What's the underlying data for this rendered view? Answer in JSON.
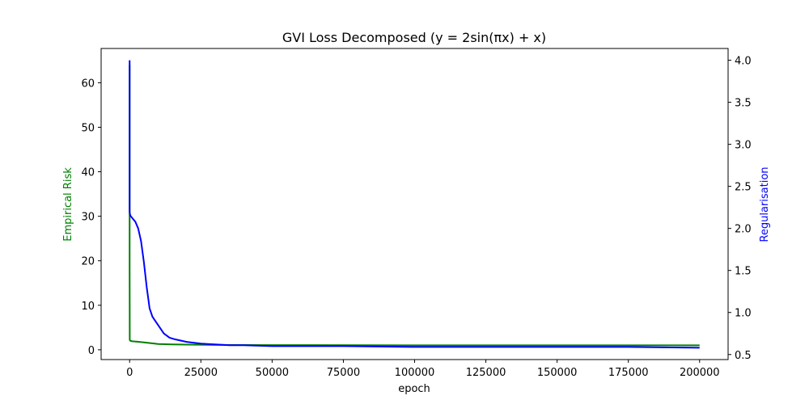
{
  "chart_data": {
    "type": "line",
    "title": "GVI Loss Decomposed (y = 2sin(πx) + x)",
    "xlabel": "epoch",
    "ylabel_left": "Empirical Risk",
    "ylabel_right": "Regularisation",
    "xlim": [
      -10000,
      210000
    ],
    "ylim_left": [
      -2.2,
      67.7
    ],
    "ylim_right": [
      0.44,
      4.14
    ],
    "x_ticks": [
      0,
      25000,
      50000,
      75000,
      100000,
      125000,
      150000,
      175000,
      200000
    ],
    "x_tick_labels": [
      "0",
      "25000",
      "50000",
      "75000",
      "100000",
      "125000",
      "150000",
      "175000",
      "200000"
    ],
    "y_left_ticks": [
      0,
      10,
      20,
      30,
      40,
      50,
      60
    ],
    "y_left_tick_labels": [
      "0",
      "10",
      "20",
      "30",
      "40",
      "50",
      "60"
    ],
    "y_right_ticks": [
      0.5,
      1.0,
      1.5,
      2.0,
      2.5,
      3.0,
      3.5,
      4.0
    ],
    "y_right_tick_labels": [
      "0.5",
      "1.0",
      "1.5",
      "2.0",
      "2.5",
      "3.0",
      "3.5",
      "4.0"
    ],
    "grid": false,
    "colors": {
      "left_axis": "#008000",
      "right_axis": "#0000ff"
    },
    "series": [
      {
        "axis": "left",
        "color": "#008000",
        "x": [
          0,
          0,
          50,
          300,
          1000,
          3000,
          6000,
          10000,
          15000,
          20000,
          30000,
          50000,
          100000,
          150000,
          200000
        ],
        "y": [
          64,
          18.5,
          2.2,
          2.0,
          1.9,
          1.8,
          1.6,
          1.3,
          1.2,
          1.15,
          1.1,
          1.05,
          1.0,
          1.0,
          1.0
        ]
      },
      {
        "axis": "right",
        "color": "#0000ff",
        "x": [
          0,
          0,
          100,
          300,
          1000,
          2000,
          3000,
          4000,
          5000,
          6000,
          7000,
          8000,
          9000,
          10000,
          12000,
          14000,
          16000,
          20000,
          25000,
          30000,
          35000,
          40000,
          50000,
          60000,
          75000,
          100000,
          125000,
          150000,
          175000,
          200000
        ],
        "y": [
          4.0,
          2.2,
          2.17,
          2.15,
          2.12,
          2.08,
          2.0,
          1.85,
          1.6,
          1.3,
          1.05,
          0.95,
          0.9,
          0.85,
          0.75,
          0.7,
          0.68,
          0.65,
          0.63,
          0.62,
          0.61,
          0.61,
          0.6,
          0.6,
          0.6,
          0.59,
          0.59,
          0.59,
          0.59,
          0.58
        ]
      }
    ]
  }
}
